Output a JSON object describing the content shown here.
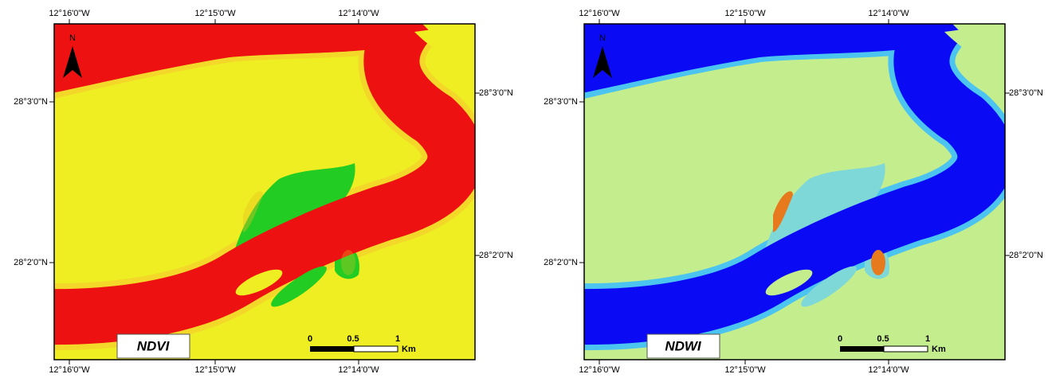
{
  "panels": [
    {
      "title": "NDVI",
      "north": "N",
      "top_labels": [
        "12°16'0\"W",
        "12°15'0\"W",
        "12°14'0\"W"
      ],
      "bottom_labels": [
        "12°16'0\"W",
        "12°15'0\"W",
        "12°14'0\"W"
      ],
      "left_labels": [
        "28°3'0\"N",
        "28°2'0\"N"
      ],
      "right_labels": [
        "28°3'0\"N",
        "28°2'0\"N"
      ],
      "scale_labels": [
        "0",
        "0.5",
        "1"
      ],
      "scale_unit": "Km"
    },
    {
      "title": "NDWI",
      "north": "N",
      "top_labels": [
        "12°16'0\"W",
        "12°15'0\"W",
        "12°14'0\"W"
      ],
      "bottom_labels": [
        "12°16'0\"W",
        "12°15'0\"W",
        "12°14'0\"W"
      ],
      "left_labels": [
        "28°3'0\"N",
        "28°2'0\"N"
      ],
      "right_labels": [
        "28°3'0\"N",
        "28°2'0\"N"
      ],
      "scale_labels": [
        "0",
        "0.5",
        "1"
      ],
      "scale_unit": "Km"
    }
  ]
}
